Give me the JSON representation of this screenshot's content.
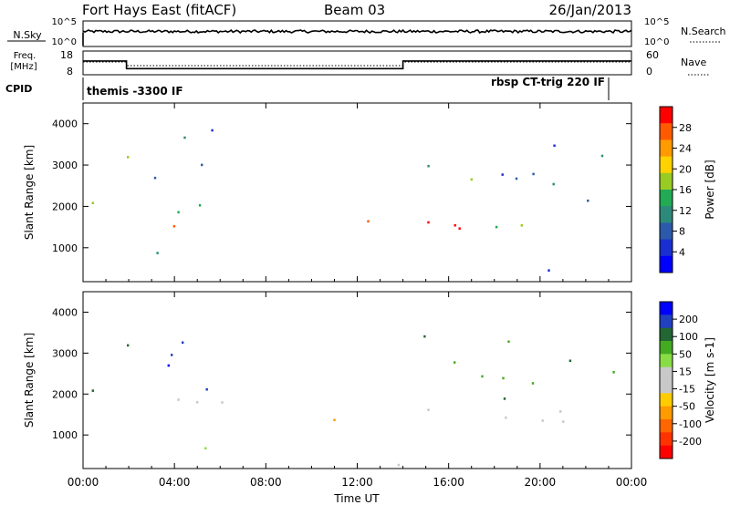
{
  "header": {
    "station": "Fort Hays East (fitACF)",
    "beam": "Beam 03",
    "date": "26/Jan/2013"
  },
  "top_panel": {
    "nsky_label": "N.Sky",
    "nsky_ticks": [
      "10^5",
      "10^0"
    ],
    "nsearch_label": "N.Search",
    "nsearch_ticks": [
      "10^5",
      "10^0"
    ],
    "freq_label_1": "Freq.",
    "freq_label_2": "[MHz]",
    "freq_ticks": [
      "18",
      "8"
    ],
    "nave_label": "Nave",
    "nave_ticks": [
      "60",
      "0"
    ],
    "cpid_label": "CPID",
    "cpid_left": "themis -3300 IF",
    "cpid_right": "rbsp CT-trig 220 IF"
  },
  "power_panel": {
    "ylabel": "Slant Range [km]",
    "yticks": [
      "4000",
      "3000",
      "2000",
      "1000"
    ],
    "colorbar_label": "Power [dB]",
    "colorbar_ticks": [
      "28",
      "24",
      "20",
      "16",
      "12",
      "8",
      "4"
    ],
    "colorbar_colors": [
      "#ff0000",
      "#ff5a00",
      "#ff9a00",
      "#ffd200",
      "#99cc22",
      "#22aa55",
      "#2d8a7a",
      "#2c5aaa",
      "#1a2fd0",
      "#0000ff"
    ]
  },
  "velocity_panel": {
    "ylabel": "Slant Range [km]",
    "yticks": [
      "4000",
      "3000",
      "2000",
      "1000"
    ],
    "colorbar_label": "Velocity [m s-1]",
    "colorbar_ticks": [
      "200",
      "100",
      "50",
      "15",
      "-15",
      "-50",
      "-100",
      "-200"
    ],
    "colorbar_colors": [
      "#0000ff",
      "#2040c0",
      "#226633",
      "#44aa22",
      "#88dd44",
      "#c8c8c8",
      "#c8c8c8",
      "#ffcc00",
      "#ff9a00",
      "#ff6600",
      "#ff3300",
      "#ff0000"
    ]
  },
  "xaxis": {
    "label": "Time UT",
    "ticks": [
      "00:00",
      "04:00",
      "08:00",
      "12:00",
      "16:00",
      "20:00",
      "00:00"
    ]
  },
  "chart_data": {
    "type": "heatmap",
    "title": "Fort Hays East (fitACF)  Beam 03  26/Jan/2013",
    "x_range_hours": [
      0,
      24
    ],
    "y_range_km": [
      180,
      4500
    ],
    "power_clim_db": [
      0,
      30
    ],
    "velocity_clim": [
      -250,
      250
    ],
    "frequency_trace": [
      {
        "t": 0,
        "mhz": 14.3
      },
      {
        "t": 1.9,
        "mhz": 14.3
      },
      {
        "t": 1.9,
        "mhz": 10.8
      },
      {
        "t": 14.0,
        "mhz": 10.8
      },
      {
        "t": 14.0,
        "mhz": 14.3
      },
      {
        "t": 24,
        "mhz": 14.3
      }
    ],
    "echo_regions": [
      {
        "name": "early-band",
        "t0": 0.0,
        "t1": 1.4,
        "r0": 1800,
        "r1": 2600,
        "power_db": 22,
        "velocity": 150
      },
      {
        "name": "early-scatter",
        "t0": 0.6,
        "t1": 2.5,
        "r0": 2600,
        "r1": 3800,
        "power_db": 12,
        "velocity": 130
      },
      {
        "name": "ramp",
        "t0": 1.3,
        "t1": 6.2,
        "r0": 1100,
        "r1": 2100,
        "power_db": 18,
        "velocity": -5
      },
      {
        "name": "high-range",
        "t0": 2.8,
        "t1": 6.0,
        "r0": 2100,
        "r1": 4300,
        "power_db": 10,
        "velocity": 200
      },
      {
        "name": "low-track",
        "t0": 3.0,
        "t1": 6.2,
        "r0": 500,
        "r1": 900,
        "power_db": 16,
        "velocity": 40
      },
      {
        "name": "midday-band",
        "t0": 9.6,
        "t1": 12.8,
        "r0": 1300,
        "r1": 1800,
        "power_db": 18,
        "velocity": -70
      },
      {
        "name": "afternoon-band",
        "t0": 12.5,
        "t1": 24.0,
        "r0": 1100,
        "r1": 1900,
        "power_db": 20,
        "velocity": -5
      },
      {
        "name": "afternoon-upper",
        "t0": 14.5,
        "t1": 23.5,
        "r0": 1800,
        "r1": 3600,
        "power_db": 10,
        "velocity": 120
      },
      {
        "name": "ground-line",
        "t0": 0.0,
        "t1": 24.0,
        "r0": 180,
        "r1": 500,
        "power_db": 6,
        "velocity": 20
      }
    ]
  }
}
